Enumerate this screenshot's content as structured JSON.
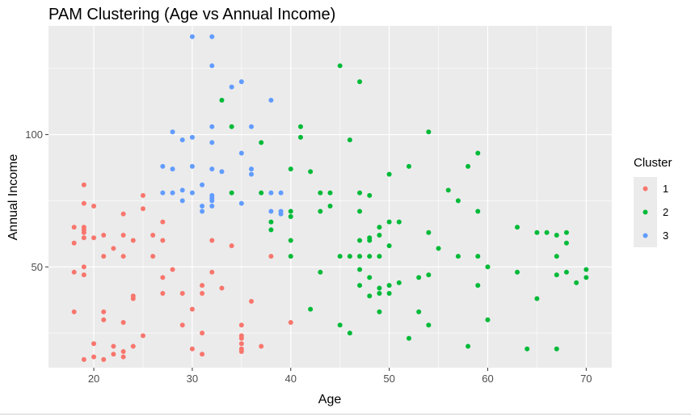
{
  "chart_data": {
    "type": "scatter",
    "title": "PAM Clustering (Age vs Annual Income)",
    "xlabel": "Age",
    "ylabel": "Annual Income",
    "xlim": [
      15.4,
      72.6
    ],
    "ylim": [
      11.9,
      141.1
    ],
    "x_ticks": [
      20,
      30,
      40,
      50,
      60,
      70
    ],
    "y_ticks": [
      50,
      100
    ],
    "grid": true,
    "panel_color": "#ebebeb",
    "legend": {
      "title": "Cluster",
      "position": "right"
    },
    "series": [
      {
        "name": "1",
        "color": "#f8766d",
        "points": [
          [
            18,
            65
          ],
          [
            18,
            59
          ],
          [
            18,
            48
          ],
          [
            18,
            33
          ],
          [
            19,
            81
          ],
          [
            19,
            74
          ],
          [
            19,
            65
          ],
          [
            19,
            64
          ],
          [
            19,
            63
          ],
          [
            19,
            61
          ],
          [
            19,
            50
          ],
          [
            19,
            47
          ],
          [
            19,
            15
          ],
          [
            20,
            73
          ],
          [
            20,
            61
          ],
          [
            20,
            21
          ],
          [
            20,
            16
          ],
          [
            21,
            62
          ],
          [
            21,
            54
          ],
          [
            21,
            33
          ],
          [
            21,
            30
          ],
          [
            21,
            15
          ],
          [
            22,
            57
          ],
          [
            22,
            20
          ],
          [
            22,
            17
          ],
          [
            23,
            70
          ],
          [
            23,
            62
          ],
          [
            23,
            54
          ],
          [
            23,
            29
          ],
          [
            23,
            18
          ],
          [
            23,
            16
          ],
          [
            24,
            60
          ],
          [
            24,
            39
          ],
          [
            24,
            38
          ],
          [
            24,
            20
          ],
          [
            25,
            77
          ],
          [
            25,
            72
          ],
          [
            25,
            24
          ],
          [
            26,
            62
          ],
          [
            26,
            54
          ],
          [
            27,
            67
          ],
          [
            27,
            60
          ],
          [
            27,
            46
          ],
          [
            27,
            40
          ],
          [
            28,
            49
          ],
          [
            29,
            40
          ],
          [
            29,
            28
          ],
          [
            30,
            34
          ],
          [
            30,
            19
          ],
          [
            31,
            43
          ],
          [
            31,
            40
          ],
          [
            31,
            25
          ],
          [
            31,
            17
          ],
          [
            32,
            60
          ],
          [
            32,
            48
          ],
          [
            33,
            42
          ],
          [
            34,
            58
          ],
          [
            35,
            28
          ],
          [
            35,
            24
          ],
          [
            35,
            23
          ],
          [
            35,
            21
          ],
          [
            35,
            19
          ],
          [
            35,
            18
          ],
          [
            36,
            37
          ],
          [
            37,
            20
          ],
          [
            38,
            54
          ],
          [
            40,
            29
          ]
        ]
      },
      {
        "name": "2",
        "color": "#00ba38",
        "points": [
          [
            33,
            113
          ],
          [
            34,
            103
          ],
          [
            34,
            78
          ],
          [
            37,
            97
          ],
          [
            37,
            78
          ],
          [
            38,
            67
          ],
          [
            38,
            64
          ],
          [
            40,
            87
          ],
          [
            40,
            71
          ],
          [
            40,
            69
          ],
          [
            40,
            60
          ],
          [
            40,
            54
          ],
          [
            41,
            103
          ],
          [
            41,
            99
          ],
          [
            42,
            86
          ],
          [
            42,
            34
          ],
          [
            43,
            78
          ],
          [
            43,
            71
          ],
          [
            43,
            48
          ],
          [
            44,
            78
          ],
          [
            44,
            73
          ],
          [
            45,
            126
          ],
          [
            45,
            54
          ],
          [
            45,
            28
          ],
          [
            46,
            98
          ],
          [
            46,
            54
          ],
          [
            46,
            25
          ],
          [
            47,
            120
          ],
          [
            47,
            78
          ],
          [
            47,
            71
          ],
          [
            47,
            60
          ],
          [
            47,
            54
          ],
          [
            47,
            49
          ],
          [
            47,
            43
          ],
          [
            48,
            77
          ],
          [
            48,
            61
          ],
          [
            48,
            60
          ],
          [
            48,
            54
          ],
          [
            48,
            46
          ],
          [
            48,
            39
          ],
          [
            49,
            65
          ],
          [
            49,
            62
          ],
          [
            49,
            54
          ],
          [
            49,
            42
          ],
          [
            49,
            33
          ],
          [
            49,
            40
          ],
          [
            50,
            85
          ],
          [
            50,
            67
          ],
          [
            50,
            58
          ],
          [
            50,
            43
          ],
          [
            50,
            40
          ],
          [
            51,
            67
          ],
          [
            51,
            44
          ],
          [
            52,
            88
          ],
          [
            52,
            23
          ],
          [
            53,
            46
          ],
          [
            53,
            33
          ],
          [
            54,
            101
          ],
          [
            54,
            63
          ],
          [
            54,
            47
          ],
          [
            54,
            28
          ],
          [
            55,
            57
          ],
          [
            56,
            79
          ],
          [
            57,
            75
          ],
          [
            57,
            54
          ],
          [
            58,
            88
          ],
          [
            58,
            20
          ],
          [
            59,
            93
          ],
          [
            59,
            71
          ],
          [
            59,
            54
          ],
          [
            59,
            43
          ],
          [
            60,
            50
          ],
          [
            60,
            30
          ],
          [
            63,
            65
          ],
          [
            63,
            48
          ],
          [
            64,
            19
          ],
          [
            65,
            63
          ],
          [
            65,
            38
          ],
          [
            66,
            63
          ],
          [
            67,
            62
          ],
          [
            67,
            54
          ],
          [
            67,
            47
          ],
          [
            67,
            19
          ],
          [
            68,
            63
          ],
          [
            68,
            59
          ],
          [
            68,
            48
          ],
          [
            69,
            44
          ],
          [
            70,
            49
          ],
          [
            70,
            46
          ]
        ]
      },
      {
        "name": "3",
        "color": "#619cff",
        "points": [
          [
            27,
            88
          ],
          [
            27,
            78
          ],
          [
            28,
            101
          ],
          [
            28,
            87
          ],
          [
            28,
            78
          ],
          [
            29,
            98
          ],
          [
            29,
            79
          ],
          [
            29,
            75
          ],
          [
            30,
            137
          ],
          [
            30,
            99
          ],
          [
            30,
            88
          ],
          [
            30,
            78
          ],
          [
            31,
            81
          ],
          [
            31,
            73
          ],
          [
            31,
            71
          ],
          [
            32,
            137
          ],
          [
            32,
            126
          ],
          [
            32,
            103
          ],
          [
            32,
            97
          ],
          [
            32,
            87
          ],
          [
            32,
            77
          ],
          [
            32,
            76
          ],
          [
            32,
            75
          ],
          [
            32,
            73
          ],
          [
            33,
            86
          ],
          [
            34,
            118
          ],
          [
            35,
            120
          ],
          [
            35,
            93
          ],
          [
            35,
            74
          ],
          [
            36,
            103
          ],
          [
            36,
            87
          ],
          [
            36,
            85
          ],
          [
            38,
            113
          ],
          [
            38,
            78
          ],
          [
            38,
            71
          ],
          [
            39,
            78
          ],
          [
            39,
            71
          ],
          [
            39,
            70
          ]
        ]
      }
    ]
  }
}
